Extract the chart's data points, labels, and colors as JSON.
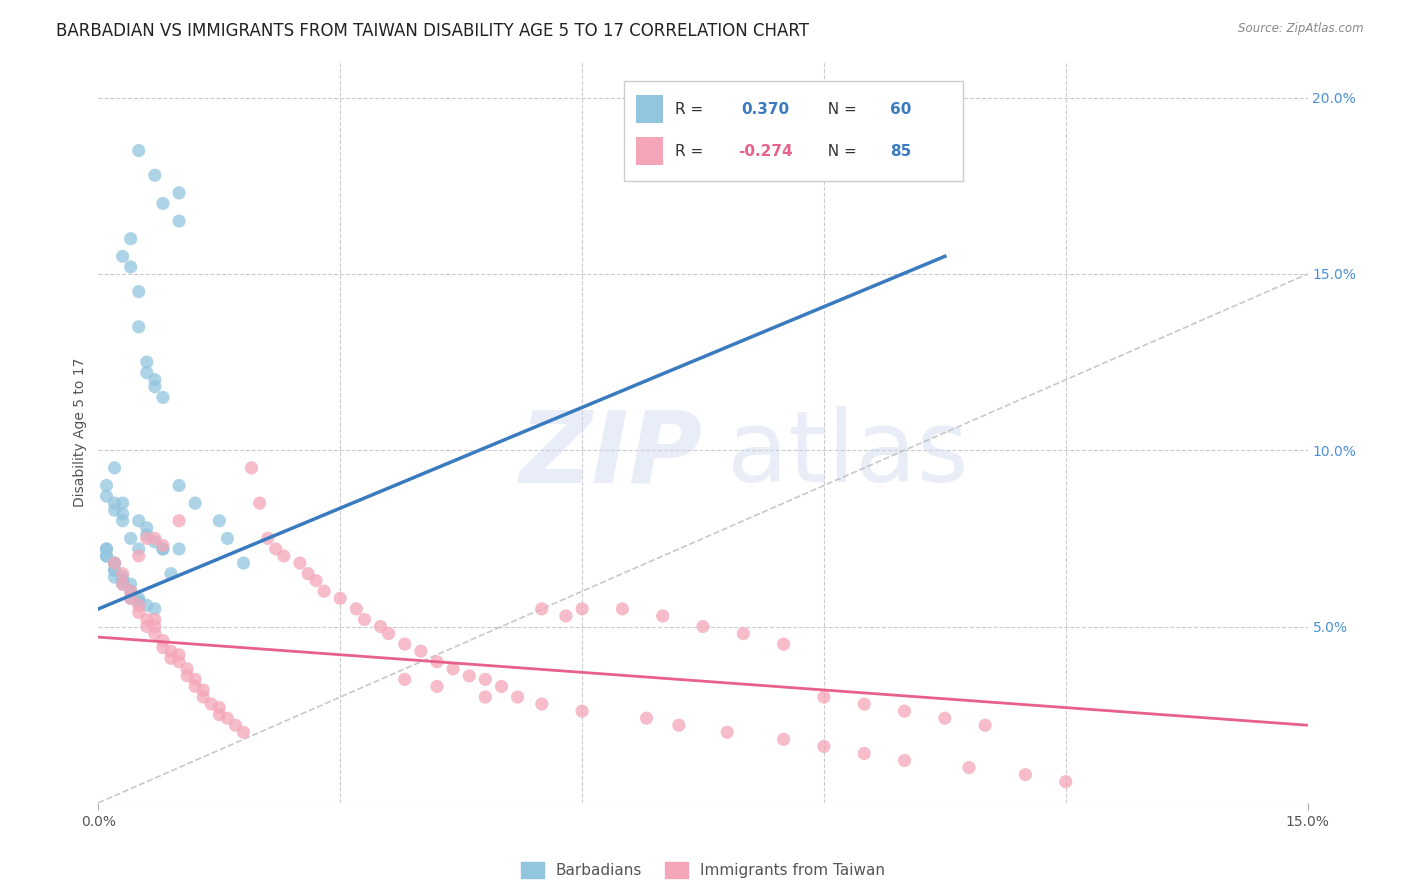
{
  "title": "BARBADIAN VS IMMIGRANTS FROM TAIWAN DISABILITY AGE 5 TO 17 CORRELATION CHART",
  "source": "Source: ZipAtlas.com",
  "ylabel": "Disability Age 5 to 17",
  "xlim": [
    0.0,
    0.15
  ],
  "ylim": [
    0.0,
    0.21
  ],
  "yticks_right": [
    0.0,
    0.05,
    0.1,
    0.15,
    0.2
  ],
  "yticklabels_right": [
    "",
    "5.0%",
    "10.0%",
    "15.0%",
    "20.0%"
  ],
  "grid_color": "#cccccc",
  "background_color": "#ffffff",
  "scatter_blue": {
    "x": [
      0.005,
      0.007,
      0.008,
      0.01,
      0.01,
      0.003,
      0.004,
      0.004,
      0.005,
      0.005,
      0.006,
      0.006,
      0.007,
      0.007,
      0.008,
      0.002,
      0.003,
      0.003,
      0.004,
      0.005,
      0.001,
      0.001,
      0.002,
      0.002,
      0.003,
      0.001,
      0.001,
      0.002,
      0.002,
      0.003,
      0.003,
      0.004,
      0.004,
      0.005,
      0.005,
      0.006,
      0.007,
      0.008,
      0.009,
      0.01,
      0.001,
      0.001,
      0.002,
      0.002,
      0.002,
      0.003,
      0.003,
      0.004,
      0.004,
      0.005,
      0.005,
      0.006,
      0.006,
      0.007,
      0.008,
      0.01,
      0.012,
      0.015,
      0.016,
      0.018
    ],
    "y": [
      0.185,
      0.178,
      0.17,
      0.173,
      0.165,
      0.155,
      0.152,
      0.16,
      0.145,
      0.135,
      0.125,
      0.122,
      0.12,
      0.118,
      0.115,
      0.095,
      0.085,
      0.08,
      0.075,
      0.072,
      0.09,
      0.087,
      0.085,
      0.083,
      0.082,
      0.072,
      0.07,
      0.068,
      0.066,
      0.064,
      0.063,
      0.062,
      0.06,
      0.058,
      0.057,
      0.056,
      0.055,
      0.072,
      0.065,
      0.072,
      0.072,
      0.07,
      0.068,
      0.066,
      0.064,
      0.063,
      0.062,
      0.06,
      0.058,
      0.057,
      0.08,
      0.078,
      0.076,
      0.074,
      0.072,
      0.09,
      0.085,
      0.08,
      0.075,
      0.068
    ]
  },
  "scatter_pink": {
    "x": [
      0.002,
      0.003,
      0.003,
      0.004,
      0.004,
      0.005,
      0.005,
      0.005,
      0.006,
      0.006,
      0.006,
      0.007,
      0.007,
      0.007,
      0.007,
      0.008,
      0.008,
      0.008,
      0.009,
      0.009,
      0.01,
      0.01,
      0.01,
      0.011,
      0.011,
      0.012,
      0.012,
      0.013,
      0.013,
      0.014,
      0.015,
      0.015,
      0.016,
      0.017,
      0.018,
      0.019,
      0.02,
      0.021,
      0.022,
      0.023,
      0.025,
      0.026,
      0.027,
      0.028,
      0.03,
      0.032,
      0.033,
      0.035,
      0.036,
      0.038,
      0.04,
      0.042,
      0.044,
      0.046,
      0.048,
      0.05,
      0.052,
      0.055,
      0.058,
      0.06,
      0.065,
      0.07,
      0.075,
      0.08,
      0.085,
      0.09,
      0.095,
      0.1,
      0.105,
      0.11,
      0.038,
      0.042,
      0.048,
      0.055,
      0.06,
      0.068,
      0.072,
      0.078,
      0.085,
      0.09,
      0.095,
      0.1,
      0.108,
      0.115,
      0.12
    ],
    "y": [
      0.068,
      0.065,
      0.062,
      0.06,
      0.058,
      0.07,
      0.056,
      0.054,
      0.075,
      0.052,
      0.05,
      0.075,
      0.052,
      0.05,
      0.048,
      0.073,
      0.046,
      0.044,
      0.043,
      0.041,
      0.08,
      0.042,
      0.04,
      0.038,
      0.036,
      0.035,
      0.033,
      0.032,
      0.03,
      0.028,
      0.027,
      0.025,
      0.024,
      0.022,
      0.02,
      0.095,
      0.085,
      0.075,
      0.072,
      0.07,
      0.068,
      0.065,
      0.063,
      0.06,
      0.058,
      0.055,
      0.052,
      0.05,
      0.048,
      0.045,
      0.043,
      0.04,
      0.038,
      0.036,
      0.035,
      0.033,
      0.03,
      0.055,
      0.053,
      0.055,
      0.055,
      0.053,
      0.05,
      0.048,
      0.045,
      0.03,
      0.028,
      0.026,
      0.024,
      0.022,
      0.035,
      0.033,
      0.03,
      0.028,
      0.026,
      0.024,
      0.022,
      0.02,
      0.018,
      0.016,
      0.014,
      0.012,
      0.01,
      0.008,
      0.006
    ]
  },
  "blue_line": {
    "x0": 0.0,
    "x1": 0.105,
    "y0": 0.055,
    "y1": 0.155
  },
  "pink_line": {
    "x0": 0.0,
    "x1": 0.15,
    "y0": 0.047,
    "y1": 0.022
  },
  "diag_line": {
    "x0": 0.0,
    "x1": 0.15,
    "y0": 0.0,
    "y1": 0.15
  },
  "blue_color": "#92c5de",
  "pink_color": "#f4a6b8",
  "blue_line_color": "#3a7bbf",
  "pink_line_color": "#e8618a",
  "diag_color": "#bbbbbb",
  "legend_blue_r": "0.370",
  "legend_blue_n": "60",
  "legend_pink_r": "-0.274",
  "legend_pink_n": "85",
  "legend_r_color_blue": "#3a7bbf",
  "legend_r_color_pink": "#e8618a",
  "legend_n_color": "#3a7bbf",
  "watermark_zip": "ZIP",
  "watermark_atlas": "atlas",
  "title_fontsize": 12,
  "axis_fontsize": 10,
  "tick_fontsize": 10,
  "right_tick_color": "#4a90d9"
}
